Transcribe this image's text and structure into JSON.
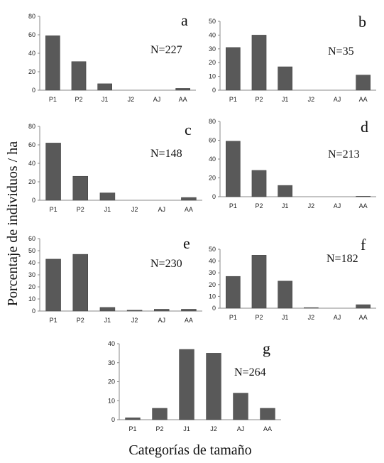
{
  "chart_data": [
    {
      "type": "bar",
      "panel": "a",
      "n_label": "N=227",
      "categories": [
        "P1",
        "P2",
        "J1",
        "J2",
        "AJ",
        "AA"
      ],
      "values": [
        59,
        31,
        7,
        0,
        0,
        2
      ],
      "ylim": [
        0,
        80
      ],
      "yticks": [
        0,
        20,
        40,
        60,
        80
      ]
    },
    {
      "type": "bar",
      "panel": "b",
      "n_label": "N=35",
      "categories": [
        "P1",
        "P2",
        "J1",
        "J2",
        "AJ",
        "AA"
      ],
      "values": [
        31,
        40,
        17,
        0,
        0,
        11
      ],
      "ylim": [
        0,
        50
      ],
      "yticks": [
        0,
        10,
        20,
        30,
        40,
        50
      ]
    },
    {
      "type": "bar",
      "panel": "c",
      "n_label": "N=148",
      "categories": [
        "P1",
        "P2",
        "J1",
        "J2",
        "AJ",
        "AA"
      ],
      "values": [
        62,
        26,
        8,
        0,
        0,
        3
      ],
      "ylim": [
        0,
        80
      ],
      "yticks": [
        0,
        20,
        40,
        60,
        80
      ]
    },
    {
      "type": "bar",
      "panel": "d",
      "n_label": "N=213",
      "categories": [
        "P1",
        "P2",
        "J1",
        "J2",
        "AJ",
        "AA"
      ],
      "values": [
        59,
        28,
        12,
        0,
        0,
        0.5
      ],
      "ylim": [
        0,
        80
      ],
      "yticks": [
        0,
        20,
        40,
        60,
        80
      ]
    },
    {
      "type": "bar",
      "panel": "e",
      "n_label": "N=230",
      "categories": [
        "P1",
        "P2",
        "J1",
        "J2",
        "AJ",
        "AA"
      ],
      "values": [
        43,
        47,
        3,
        0.7,
        1.5,
        1.5
      ],
      "ylim": [
        0,
        60
      ],
      "yticks": [
        0,
        10,
        20,
        30,
        40,
        50,
        60
      ]
    },
    {
      "type": "bar",
      "panel": "f",
      "n_label": "N=182",
      "categories": [
        "P1",
        "P2",
        "J1",
        "J2",
        "AJ",
        "AA"
      ],
      "values": [
        27,
        45,
        23,
        0.5,
        0,
        3
      ],
      "ylim": [
        0,
        50
      ],
      "yticks": [
        0,
        10,
        20,
        30,
        40,
        50
      ]
    },
    {
      "type": "bar",
      "panel": "g",
      "n_label": "N=264",
      "categories": [
        "P1",
        "P2",
        "J1",
        "J2",
        "AJ",
        "AA"
      ],
      "values": [
        1,
        6,
        37,
        35,
        14,
        6
      ],
      "ylim": [
        0,
        40
      ],
      "yticks": [
        0,
        10,
        20,
        30,
        40
      ]
    }
  ],
  "ylabel": "Porcentaje de individuos / ha",
  "xlabel": "Categorías de tamaño",
  "bar_color": "#595959"
}
